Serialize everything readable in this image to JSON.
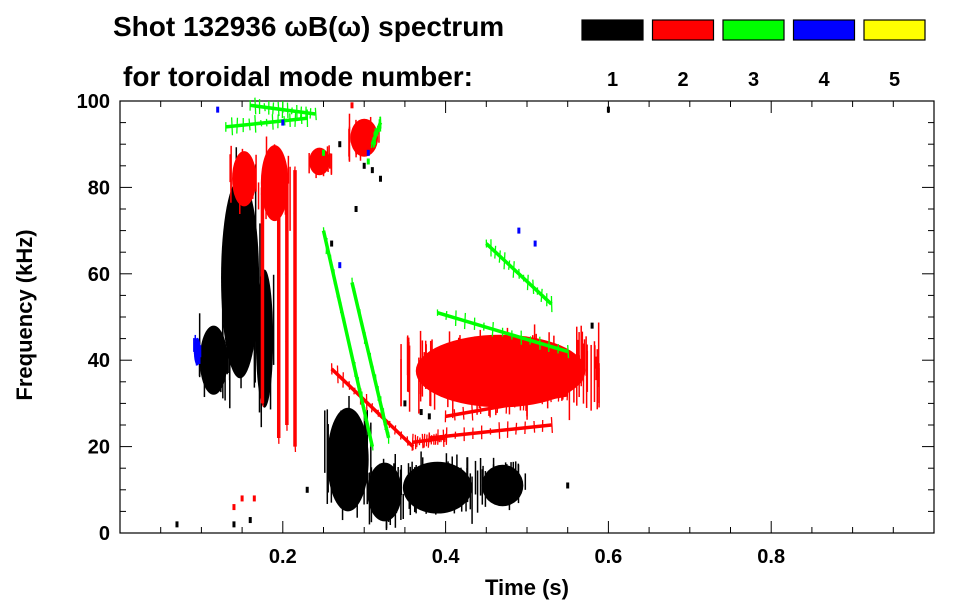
{
  "chart_data": {
    "type": "scatter",
    "title": "Shot 132936 ωB(ω) spectrum",
    "subtitle": "for toroidal mode number:",
    "xlabel": "Time (s)",
    "ylabel": "Frequency (kHz)",
    "xlim": [
      0,
      1.0
    ],
    "ylim": [
      0,
      100
    ],
    "x_ticks": [
      0.2,
      0.4,
      0.6,
      0.8
    ],
    "x_tick_labels": [
      "0.2",
      "0.4",
      "0.6",
      "0.8"
    ],
    "y_ticks": [
      0,
      20,
      40,
      60,
      80,
      100
    ],
    "y_tick_labels": [
      "0",
      "20",
      "40",
      "60",
      "80",
      "100"
    ],
    "grid": false,
    "legend": {
      "placement": "top-right",
      "entries": [
        {
          "label": "1",
          "color": "#000000"
        },
        {
          "label": "2",
          "color": "#ff0000"
        },
        {
          "label": "3",
          "color": "#00ff00"
        },
        {
          "label": "4",
          "color": "#0000ff"
        },
        {
          "label": "5",
          "color": "#ffff00"
        }
      ]
    },
    "series": [
      {
        "mode": "1",
        "color": "#000000",
        "blobs": [
          {
            "t": [
              0.095,
              0.135
            ],
            "f": [
              30,
              50
            ]
          },
          {
            "t": [
              0.12,
              0.175
            ],
            "f": [
              30,
              88
            ]
          },
          {
            "t": [
              0.165,
              0.19
            ],
            "f": [
              25,
              65
            ]
          },
          {
            "t": [
              0.25,
              0.31
            ],
            "f": [
              2,
              32
            ]
          },
          {
            "t": [
              0.3,
              0.35
            ],
            "f": [
              1,
              18
            ]
          },
          {
            "t": [
              0.34,
              0.44
            ],
            "f": [
              3,
              18
            ]
          },
          {
            "t": [
              0.44,
              0.5
            ],
            "f": [
              5,
              17
            ]
          }
        ],
        "points": [
          {
            "t": 0.07,
            "f": 2
          },
          {
            "t": 0.14,
            "f": 2
          },
          {
            "t": 0.16,
            "f": 3
          },
          {
            "t": 0.23,
            "f": 10
          },
          {
            "t": 0.26,
            "f": 67
          },
          {
            "t": 0.27,
            "f": 90
          },
          {
            "t": 0.29,
            "f": 75
          },
          {
            "t": 0.3,
            "f": 85
          },
          {
            "t": 0.31,
            "f": 84
          },
          {
            "t": 0.32,
            "f": 82
          },
          {
            "t": 0.35,
            "f": 30
          },
          {
            "t": 0.37,
            "f": 28
          },
          {
            "t": 0.38,
            "f": 27
          },
          {
            "t": 0.55,
            "f": 11
          },
          {
            "t": 0.58,
            "f": 48
          },
          {
            "t": 0.6,
            "f": 98
          }
        ]
      },
      {
        "mode": "2",
        "color": "#ff0000",
        "blobs": [
          {
            "t": [
              0.135,
              0.17
            ],
            "f": [
              74,
              90
            ]
          },
          {
            "t": [
              0.17,
              0.21
            ],
            "f": [
              70,
              92
            ]
          },
          {
            "t": [
              0.23,
              0.26
            ],
            "f": [
              82,
              90
            ]
          },
          {
            "t": [
              0.28,
              0.32
            ],
            "f": [
              86,
              97
            ]
          },
          {
            "t": [
              0.345,
              0.59
            ],
            "f": [
              27,
              48
            ]
          }
        ],
        "lines": [
          {
            "t": [
              0.26,
              0.36
            ],
            "f": [
              38,
              20
            ]
          },
          {
            "t": [
              0.36,
              0.4
            ],
            "f": [
              21,
              22
            ]
          },
          {
            "t": [
              0.38,
              0.53
            ],
            "f": [
              22,
              25
            ]
          },
          {
            "t": [
              0.4,
              0.55
            ],
            "f": [
              27,
              32
            ]
          },
          {
            "t": [
              0.215,
              0.215
            ],
            "f": [
              20,
              84
            ]
          },
          {
            "t": [
              0.205,
              0.205
            ],
            "f": [
              25,
              82
            ]
          },
          {
            "t": [
              0.195,
              0.195
            ],
            "f": [
              22,
              78
            ]
          },
          {
            "t": [
              0.175,
              0.175
            ],
            "f": [
              30,
              80
            ]
          }
        ],
        "points": [
          {
            "t": 0.14,
            "f": 6
          },
          {
            "t": 0.15,
            "f": 8
          },
          {
            "t": 0.165,
            "f": 8
          },
          {
            "t": 0.285,
            "f": 99
          }
        ]
      },
      {
        "mode": "3",
        "color": "#00ff00",
        "lines": [
          {
            "t": [
              0.13,
              0.23
            ],
            "f": [
              94,
              96
            ]
          },
          {
            "t": [
              0.16,
              0.24
            ],
            "f": [
              99,
              97
            ]
          },
          {
            "t": [
              0.25,
              0.31
            ],
            "f": [
              70,
              20
            ]
          },
          {
            "t": [
              0.285,
              0.33
            ],
            "f": [
              58,
              22
            ]
          },
          {
            "t": [
              0.39,
              0.55
            ],
            "f": [
              51,
              42
            ]
          },
          {
            "t": [
              0.45,
              0.53
            ],
            "f": [
              67,
              53
            ]
          },
          {
            "t": [
              0.31,
              0.32
            ],
            "f": [
              90,
              95
            ]
          }
        ],
        "points": [
          {
            "t": 0.25,
            "f": 88
          },
          {
            "t": 0.305,
            "f": 86
          }
        ]
      },
      {
        "mode": "4",
        "color": "#0000ff",
        "blobs": [
          {
            "t": [
              0.09,
              0.1
            ],
            "f": [
              38,
              46
            ]
          }
        ],
        "points": [
          {
            "t": 0.12,
            "f": 98
          },
          {
            "t": 0.2,
            "f": 95
          },
          {
            "t": 0.27,
            "f": 62
          },
          {
            "t": 0.305,
            "f": 88
          },
          {
            "t": 0.49,
            "f": 70
          },
          {
            "t": 0.51,
            "f": 67
          }
        ]
      }
    ]
  }
}
